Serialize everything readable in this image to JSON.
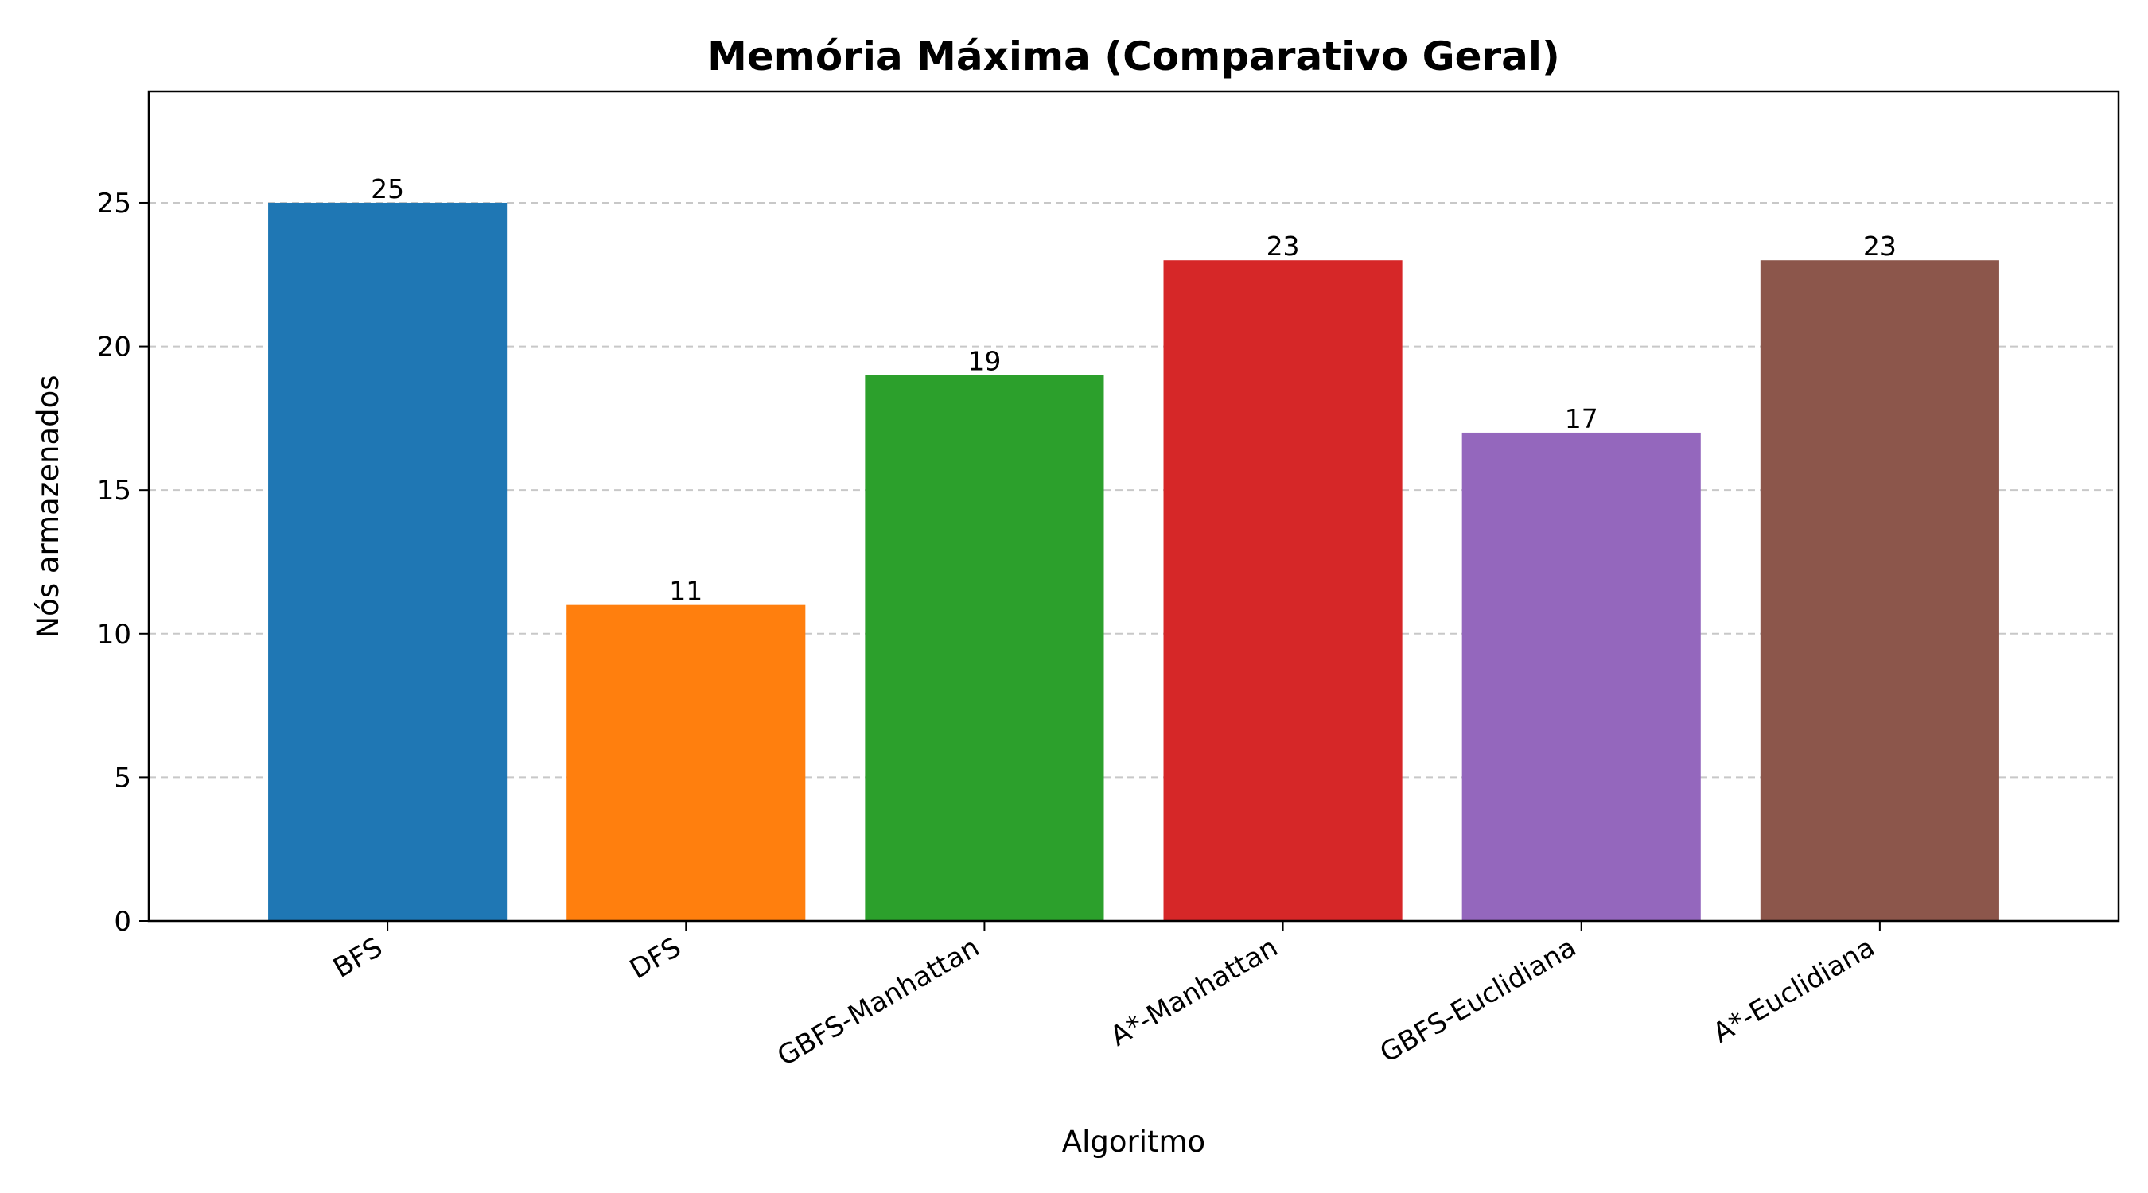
{
  "chart_data": {
    "type": "bar",
    "title": "Memória Máxima (Comparativo Geral)",
    "xlabel": "Algoritmo",
    "ylabel": "Nós armazenados",
    "categories": [
      "BFS",
      "DFS",
      "GBFS-Manhattan",
      "A*-Manhattan",
      "GBFS-Euclidiana",
      "A*-Euclidiana"
    ],
    "values": [
      25,
      11,
      19,
      23,
      17,
      23
    ],
    "value_labels": [
      "25",
      "11",
      "19",
      "23",
      "17",
      "23"
    ],
    "colors": [
      "#1f77b4",
      "#ff7f0e",
      "#2ca02c",
      "#d62728",
      "#9467bd",
      "#8c564b"
    ],
    "ylim": [
      0,
      28.875
    ],
    "yticks": [
      0,
      5,
      10,
      15,
      20,
      25
    ],
    "ytick_labels": [
      "0",
      "5",
      "10",
      "15",
      "20",
      "25"
    ],
    "grid": "y-dashed",
    "x_tick_rotation_deg": 30
  }
}
